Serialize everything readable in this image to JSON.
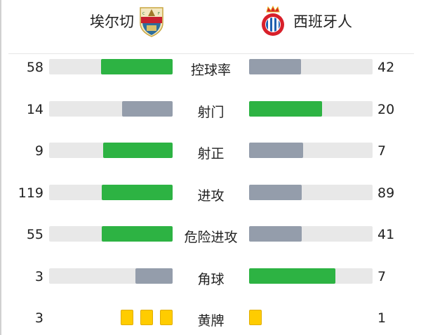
{
  "colors": {
    "leader": "#2db343",
    "trailer": "#949dab",
    "track": "#e8e8e8",
    "yellow_card": "#ffcc00"
  },
  "home": {
    "name": "埃尔切",
    "logo": "elche-crest"
  },
  "away": {
    "name": "西班牙人",
    "logo": "espanyol-crest"
  },
  "stats": [
    {
      "label": "控球率",
      "home": 58,
      "away": 42
    },
    {
      "label": "射门",
      "home": 14,
      "away": 20
    },
    {
      "label": "射正",
      "home": 9,
      "away": 7
    },
    {
      "label": "进攻",
      "home": 119,
      "away": 89
    },
    {
      "label": "危险进攻",
      "home": 55,
      "away": 41
    },
    {
      "label": "角球",
      "home": 3,
      "away": 7
    }
  ],
  "yellow_cards": {
    "label": "黄牌",
    "home": 3,
    "away": 1
  }
}
